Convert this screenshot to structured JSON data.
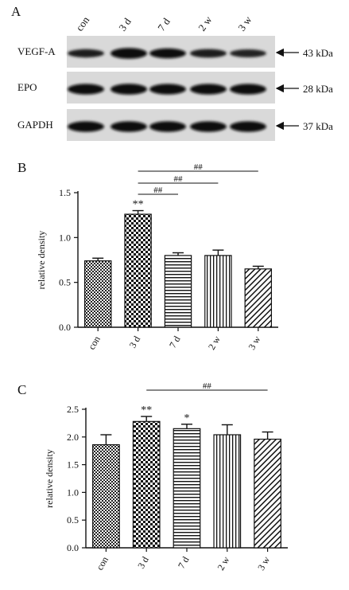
{
  "panelA": {
    "letter": "A",
    "lane_labels": [
      "con",
      "3 d",
      "7 d",
      "2 w",
      "3 w"
    ],
    "rows": [
      {
        "name": "VEGF-A",
        "size": "43 kDa",
        "intensity": [
          0.55,
          0.95,
          0.8,
          0.6,
          0.5
        ]
      },
      {
        "name": "EPO",
        "size": "28 kDa",
        "intensity": [
          0.9,
          0.95,
          0.9,
          0.9,
          0.9
        ]
      },
      {
        "name": "GAPDH",
        "size": "37 kDa",
        "intensity": [
          0.9,
          0.9,
          0.9,
          0.9,
          0.9
        ]
      }
    ]
  },
  "chart_data": [
    {
      "type": "bar",
      "letter": "B",
      "categories": [
        "con",
        "3 d",
        "7 d",
        "2 w",
        "3 w"
      ],
      "values": [
        0.74,
        1.26,
        0.8,
        0.8,
        0.65
      ],
      "errors": [
        0.03,
        0.04,
        0.03,
        0.06,
        0.03
      ],
      "ylabel": "relative density",
      "ylim": [
        0,
        1.5
      ],
      "yticks": [
        "0.0",
        "0.5",
        "1.0",
        "1.5"
      ],
      "patterns": [
        "checker-fine",
        "checker",
        "horizontal",
        "vertical",
        "diagonal"
      ],
      "stars": [
        {
          "category": "3 d",
          "text": "**"
        }
      ],
      "brackets": [
        {
          "from": "3 d",
          "to": "3 w",
          "text": "##"
        },
        {
          "from": "3 d",
          "to": "2 w",
          "text": "##"
        },
        {
          "from": "3 d",
          "to": "7 d",
          "text": "##"
        }
      ]
    },
    {
      "type": "bar",
      "letter": "C",
      "categories": [
        "con",
        "3 d",
        "7 d",
        "2 w",
        "3 w"
      ],
      "values": [
        1.86,
        2.28,
        2.15,
        2.04,
        1.96
      ],
      "errors": [
        0.18,
        0.09,
        0.08,
        0.18,
        0.13
      ],
      "ylabel": "relative density",
      "ylim": [
        0,
        2.5
      ],
      "yticks": [
        "0.0",
        "0.5",
        "1.0",
        "1.5",
        "2.0",
        "2.5"
      ],
      "patterns": [
        "checker-fine",
        "checker",
        "horizontal",
        "vertical",
        "diagonal"
      ],
      "stars": [
        {
          "category": "3 d",
          "text": "**"
        },
        {
          "category": "7 d",
          "text": "*"
        }
      ],
      "brackets": [
        {
          "from": "3 d",
          "to": "3 w",
          "text": "##"
        }
      ]
    }
  ]
}
